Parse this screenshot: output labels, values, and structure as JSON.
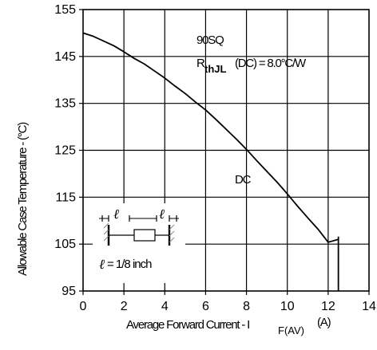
{
  "chart_data": {
    "type": "line",
    "xlabel": "Average Forward Current - I",
    "xlabel_sub": "F(AV)",
    "xlabel_unit": "(A)",
    "ylabel": "Allowable Case Temperature - (°C)",
    "xlim": [
      0,
      14
    ],
    "ylim": [
      95,
      155
    ],
    "x_ticks": [
      "0",
      "2",
      "4",
      "6",
      "8",
      "10",
      "12",
      "14"
    ],
    "y_ticks": [
      "155",
      "145",
      "135",
      "125",
      "115",
      "105",
      "95"
    ],
    "x_tick_values": [
      0,
      2,
      4,
      6,
      8,
      10,
      12,
      14
    ],
    "y_tick_values": [
      155,
      145,
      135,
      125,
      115,
      105,
      95
    ],
    "grid": true,
    "series": [
      {
        "name": "DC",
        "color": "#000000",
        "x": [
          0,
          0.5,
          1,
          1.5,
          2,
          2.5,
          3,
          3.5,
          4,
          4.5,
          5,
          5.5,
          6,
          6.5,
          7,
          7.5,
          8,
          8.5,
          9,
          9.5,
          10,
          10.5,
          11,
          11.5,
          12,
          12.5
        ],
        "y": [
          150.0,
          149.3,
          148.3,
          147.3,
          146.0,
          144.6,
          143.4,
          141.9,
          140.4,
          138.7,
          137.1,
          135.3,
          133.6,
          131.6,
          129.5,
          127.4,
          125.2,
          122.8,
          120.5,
          118.2,
          115.7,
          113.1,
          110.6,
          108.2,
          105.4,
          106.0
        ],
        "drop": {
          "x": 12.5,
          "y_from": 106.6,
          "y_to": 95
        }
      }
    ],
    "annotations": {
      "part": "90SQ",
      "rth_main": "R",
      "rth_sub": "thJL",
      "rth_value": "(DC) = 8.0°C/W",
      "curve_label": "DC"
    },
    "inset": {
      "lead_label": "= 1/8 inch",
      "lead_symbol": "ℓ"
    }
  }
}
